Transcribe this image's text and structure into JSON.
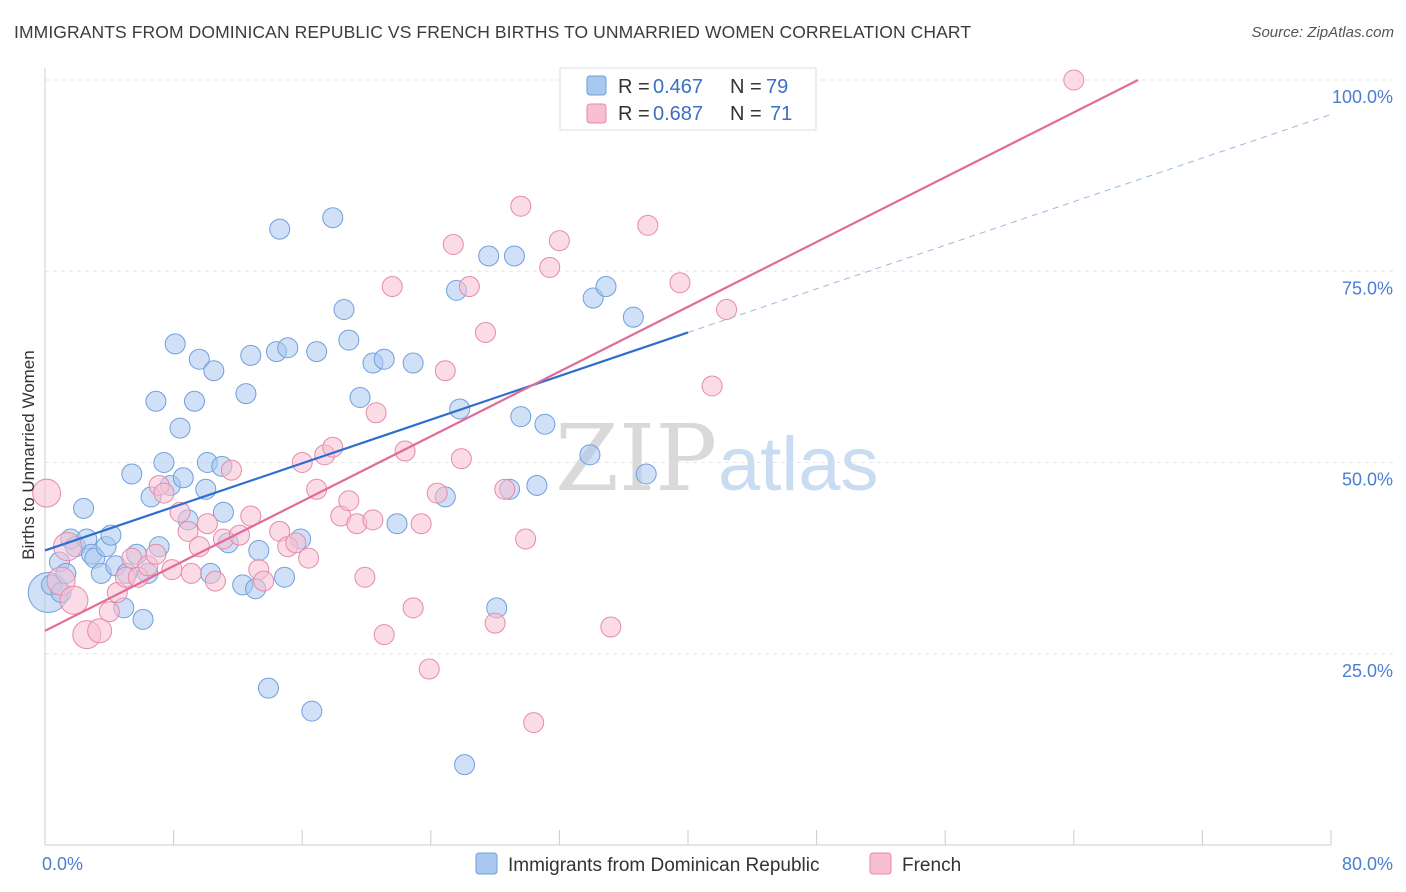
{
  "title": "IMMIGRANTS FROM DOMINICAN REPUBLIC VS FRENCH BIRTHS TO UNMARRIED WOMEN CORRELATION CHART",
  "source": "Source: ZipAtlas.com",
  "watermark": {
    "zip": "ZIP",
    "atlas": "atlas"
  },
  "legend": {
    "rows": [
      {
        "r_label": "R = ",
        "r_value": "0.467",
        "n_label": "N = ",
        "n_value": "79",
        "color": "#a9c8f0",
        "stroke": "#6f9fdc"
      },
      {
        "r_label": "R = ",
        "r_value": "0.687",
        "n_label": "N = ",
        "n_value": "71",
        "color": "#f7bfd1",
        "stroke": "#e58aa8"
      }
    ]
  },
  "bottom_legend": [
    {
      "label": "Immigrants from Dominican Republic",
      "color": "#a9c8f0",
      "stroke": "#6f9fdc"
    },
    {
      "label": "French",
      "color": "#f7bfd1",
      "stroke": "#e58aa8"
    }
  ],
  "chart_data": {
    "type": "scatter",
    "xlabel": "",
    "ylabel": "Births to Unmarried Women",
    "xlim": [
      0,
      80
    ],
    "ylim": [
      0,
      102
    ],
    "x_tick_labels": [
      {
        "value": 0,
        "label": "0.0%"
      },
      {
        "value": 80,
        "label": "80.0%"
      }
    ],
    "y_tick_labels": [
      {
        "value": 25,
        "label": "25.0%"
      },
      {
        "value": 50,
        "label": "50.0%"
      },
      {
        "value": 75,
        "label": "75.0%"
      },
      {
        "value": 100,
        "label": "100.0%"
      }
    ],
    "grid": true,
    "legend_position": "top-center",
    "series": [
      {
        "color": "#a9c8f0",
        "stroke": "#6f9fdc",
        "line_color": "#2d6fcd",
        "trend": {
          "x0": 0,
          "y0": 38.5,
          "x1": 40,
          "y1": 67,
          "dashed_to_x": 80,
          "dashed_to_y": 95.5
        },
        "points": [
          [
            0.2,
            33,
            20
          ],
          [
            0.4,
            34,
            10
          ],
          [
            0.9,
            37,
            10
          ],
          [
            1.0,
            33,
            10
          ],
          [
            1.3,
            35.5,
            10
          ],
          [
            1.6,
            40,
            10
          ],
          [
            1.9,
            39,
            10
          ],
          [
            2.4,
            44,
            10
          ],
          [
            2.6,
            40,
            10
          ],
          [
            2.9,
            38,
            10
          ],
          [
            3.1,
            37.5,
            10
          ],
          [
            3.5,
            35.5,
            10
          ],
          [
            3.8,
            39,
            10
          ],
          [
            4.1,
            40.5,
            10
          ],
          [
            4.4,
            36.5,
            10
          ],
          [
            4.9,
            31,
            10
          ],
          [
            5.1,
            35.5,
            10
          ],
          [
            5.4,
            48.5,
            10
          ],
          [
            5.7,
            38,
            10
          ],
          [
            6.1,
            29.5,
            10
          ],
          [
            6.4,
            35.5,
            10
          ],
          [
            6.6,
            45.5,
            10
          ],
          [
            6.9,
            58,
            10
          ],
          [
            7.1,
            39,
            10
          ],
          [
            7.4,
            50,
            10
          ],
          [
            7.8,
            47,
            10
          ],
          [
            8.1,
            65.5,
            10
          ],
          [
            8.4,
            54.5,
            10
          ],
          [
            8.6,
            48,
            10
          ],
          [
            8.9,
            42.5,
            10
          ],
          [
            9.3,
            58,
            10
          ],
          [
            9.6,
            63.5,
            10
          ],
          [
            10.0,
            46.5,
            10
          ],
          [
            10.1,
            50,
            10
          ],
          [
            10.3,
            35.5,
            10
          ],
          [
            10.5,
            62,
            10
          ],
          [
            11.0,
            49.5,
            10
          ],
          [
            11.1,
            43.5,
            10
          ],
          [
            11.4,
            39.5,
            10
          ],
          [
            12.3,
            34,
            10
          ],
          [
            12.5,
            59,
            10
          ],
          [
            12.8,
            64,
            10
          ],
          [
            13.1,
            33.5,
            10
          ],
          [
            13.3,
            38.5,
            10
          ],
          [
            13.9,
            20.5,
            10
          ],
          [
            14.4,
            64.5,
            10
          ],
          [
            14.6,
            80.5,
            10
          ],
          [
            14.9,
            35,
            10
          ],
          [
            15.1,
            65,
            10
          ],
          [
            15.9,
            40,
            10
          ],
          [
            16.6,
            17.5,
            10
          ],
          [
            16.9,
            64.5,
            10
          ],
          [
            17.9,
            82,
            10
          ],
          [
            18.6,
            70,
            10
          ],
          [
            18.9,
            66,
            10
          ],
          [
            19.6,
            58.5,
            10
          ],
          [
            20.4,
            63,
            10
          ],
          [
            21.1,
            63.5,
            10
          ],
          [
            21.9,
            42,
            10
          ],
          [
            22.9,
            63,
            10
          ],
          [
            24.9,
            45.5,
            10
          ],
          [
            25.6,
            72.5,
            10
          ],
          [
            25.8,
            57,
            10
          ],
          [
            26.1,
            10.5,
            10
          ],
          [
            27.6,
            77,
            10
          ],
          [
            28.1,
            31,
            10
          ],
          [
            28.9,
            46.5,
            10
          ],
          [
            29.2,
            77,
            10
          ],
          [
            29.6,
            56,
            10
          ],
          [
            30.6,
            47,
            10
          ],
          [
            31.1,
            55,
            10
          ],
          [
            33.9,
            51,
            10
          ],
          [
            34.1,
            71.5,
            10
          ],
          [
            34.9,
            73,
            10
          ],
          [
            36.6,
            69,
            10
          ],
          [
            37.4,
            48.5,
            10
          ]
        ]
      },
      {
        "color": "#f7bfd1",
        "stroke": "#e58aa8",
        "line_color": "#e26b98",
        "trend": {
          "x0": 0,
          "y0": 28,
          "x1": 68,
          "y1": 100
        },
        "points": [
          [
            0.1,
            46,
            14
          ],
          [
            1.0,
            34.5,
            14
          ],
          [
            1.4,
            39,
            14
          ],
          [
            1.8,
            32,
            14
          ],
          [
            2.6,
            27.5,
            14
          ],
          [
            3.4,
            28,
            12
          ],
          [
            4.0,
            30.5,
            10
          ],
          [
            4.5,
            33,
            10
          ],
          [
            5.0,
            35,
            10
          ],
          [
            5.4,
            37.5,
            10
          ],
          [
            5.8,
            35,
            10
          ],
          [
            6.4,
            36.5,
            10
          ],
          [
            6.9,
            38,
            10
          ],
          [
            7.1,
            47,
            10
          ],
          [
            7.4,
            46,
            10
          ],
          [
            7.9,
            36,
            10
          ],
          [
            8.4,
            43.5,
            10
          ],
          [
            8.9,
            41,
            10
          ],
          [
            9.1,
            35.5,
            10
          ],
          [
            9.6,
            39,
            10
          ],
          [
            10.1,
            42,
            10
          ],
          [
            10.6,
            34.5,
            10
          ],
          [
            11.1,
            40,
            10
          ],
          [
            11.6,
            49,
            10
          ],
          [
            12.1,
            40.5,
            10
          ],
          [
            12.8,
            43,
            10
          ],
          [
            13.3,
            36,
            10
          ],
          [
            13.6,
            34.5,
            10
          ],
          [
            14.6,
            41,
            10
          ],
          [
            15.1,
            39,
            10
          ],
          [
            15.6,
            39.5,
            10
          ],
          [
            16.0,
            50,
            10
          ],
          [
            16.4,
            37.5,
            10
          ],
          [
            16.9,
            46.5,
            10
          ],
          [
            17.4,
            51,
            10
          ],
          [
            17.9,
            52,
            10
          ],
          [
            18.4,
            43,
            10
          ],
          [
            18.9,
            45,
            10
          ],
          [
            19.4,
            42,
            10
          ],
          [
            19.9,
            35,
            10
          ],
          [
            20.4,
            42.5,
            10
          ],
          [
            20.6,
            56.5,
            10
          ],
          [
            21.1,
            27.5,
            10
          ],
          [
            21.6,
            73,
            10
          ],
          [
            22.4,
            51.5,
            10
          ],
          [
            22.9,
            31,
            10
          ],
          [
            23.4,
            42,
            10
          ],
          [
            23.9,
            23,
            10
          ],
          [
            24.4,
            46,
            10
          ],
          [
            24.9,
            62,
            10
          ],
          [
            25.4,
            78.5,
            10
          ],
          [
            25.9,
            50.5,
            10
          ],
          [
            26.4,
            73,
            10
          ],
          [
            27.4,
            67,
            10
          ],
          [
            28.0,
            29,
            10
          ],
          [
            28.6,
            46.5,
            10
          ],
          [
            29.6,
            83.5,
            10
          ],
          [
            29.9,
            40,
            10
          ],
          [
            30.4,
            16,
            10
          ],
          [
            31.4,
            75.5,
            10
          ],
          [
            32.0,
            79,
            10
          ],
          [
            35.2,
            28.5,
            10
          ],
          [
            37.5,
            81,
            10
          ],
          [
            39.5,
            73.5,
            10
          ],
          [
            39.9,
            100,
            10
          ],
          [
            41.5,
            60,
            10
          ],
          [
            42.4,
            70,
            10
          ],
          [
            64.0,
            100,
            10
          ]
        ]
      }
    ]
  }
}
